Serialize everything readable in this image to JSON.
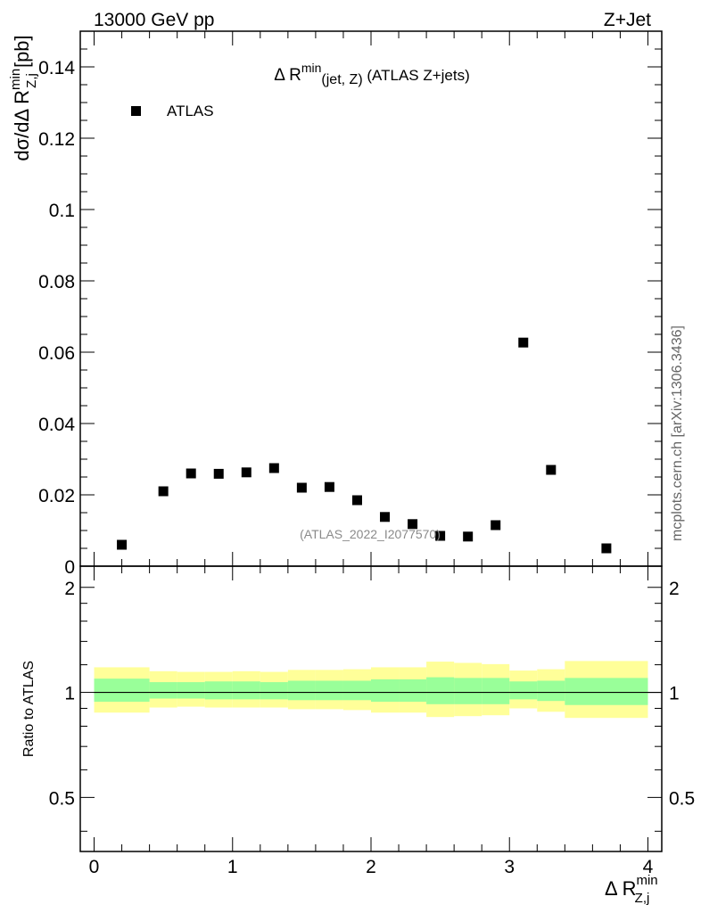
{
  "header": {
    "left": "13000 GeV pp",
    "right": "Z+Jet"
  },
  "side_label": "mcplots.cern.ch [arXiv:1306.3436]",
  "watermark": "(ATLAS_2022_I2077570)",
  "chart_data": [
    {
      "type": "scatter",
      "title": {
        "main": "Δ R",
        "sup": "min",
        "sub": "(jet, Z)",
        "tail": " (ATLAS Z+jets)"
      },
      "ylabel": {
        "main": "dσ/dΔ R",
        "sup": "min",
        "sub": "Z,j",
        "tail": " [pb]"
      },
      "xlim": [
        -0.1,
        4.1
      ],
      "ylim": [
        0,
        0.15
      ],
      "yticks": [
        0,
        0.02,
        0.04,
        0.06,
        0.08,
        0.1,
        0.12,
        0.14
      ],
      "ytick_labels": [
        "0",
        "0.02",
        "0.04",
        "0.06",
        "0.08",
        "0.1",
        "0.12",
        "0.14"
      ],
      "legend": {
        "position": "top-left",
        "entries": [
          "ATLAS"
        ]
      },
      "series": [
        {
          "name": "ATLAS",
          "color": "#000000",
          "x": [
            0.2,
            0.5,
            0.7,
            0.9,
            1.1,
            1.3,
            1.5,
            1.7,
            1.9,
            2.1,
            2.3,
            2.5,
            2.7,
            2.9,
            3.1,
            3.3,
            3.7
          ],
          "y": [
            0.006,
            0.021,
            0.026,
            0.0259,
            0.0263,
            0.0275,
            0.022,
            0.0222,
            0.0185,
            0.0138,
            0.0118,
            0.0085,
            0.0083,
            0.0115,
            0.0627,
            0.027,
            0.005
          ]
        }
      ]
    },
    {
      "type": "area",
      "ylabel": "Ratio to ATLAS",
      "xlabel": {
        "main": "Δ R",
        "sup": "min",
        "sub": "Z,j"
      },
      "xlim": [
        -0.1,
        4.1
      ],
      "ylim": [
        0.35,
        2.3
      ],
      "xticks": [
        0,
        1,
        2,
        3,
        4
      ],
      "xtick_labels": [
        "0",
        "1",
        "2",
        "3",
        "4"
      ],
      "yticks": [
        0.5,
        1,
        2
      ],
      "ytick_labels": [
        "0.5",
        "1",
        "2"
      ],
      "reference_line": 1,
      "bin_edges": [
        0,
        0.4,
        0.6,
        0.8,
        1.0,
        1.2,
        1.4,
        1.6,
        1.8,
        2.0,
        2.2,
        2.4,
        2.6,
        2.8,
        3.0,
        3.2,
        3.4,
        4.0
      ],
      "bands": {
        "green": {
          "color": "#99ff99",
          "low": [
            0.94,
            0.96,
            0.96,
            0.955,
            0.955,
            0.955,
            0.95,
            0.95,
            0.95,
            0.94,
            0.94,
            0.925,
            0.925,
            0.925,
            0.955,
            0.945,
            0.92
          ],
          "high": [
            1.095,
            1.07,
            1.07,
            1.075,
            1.075,
            1.07,
            1.08,
            1.08,
            1.08,
            1.09,
            1.09,
            1.105,
            1.1,
            1.1,
            1.075,
            1.08,
            1.1
          ]
        },
        "yellow": {
          "color": "#ffff99",
          "low": [
            0.875,
            0.905,
            0.91,
            0.905,
            0.905,
            0.905,
            0.895,
            0.895,
            0.89,
            0.875,
            0.875,
            0.85,
            0.855,
            0.86,
            0.9,
            0.88,
            0.845
          ],
          "high": [
            1.18,
            1.15,
            1.145,
            1.145,
            1.15,
            1.145,
            1.16,
            1.16,
            1.165,
            1.18,
            1.18,
            1.225,
            1.215,
            1.205,
            1.155,
            1.165,
            1.23
          ]
        }
      }
    }
  ]
}
